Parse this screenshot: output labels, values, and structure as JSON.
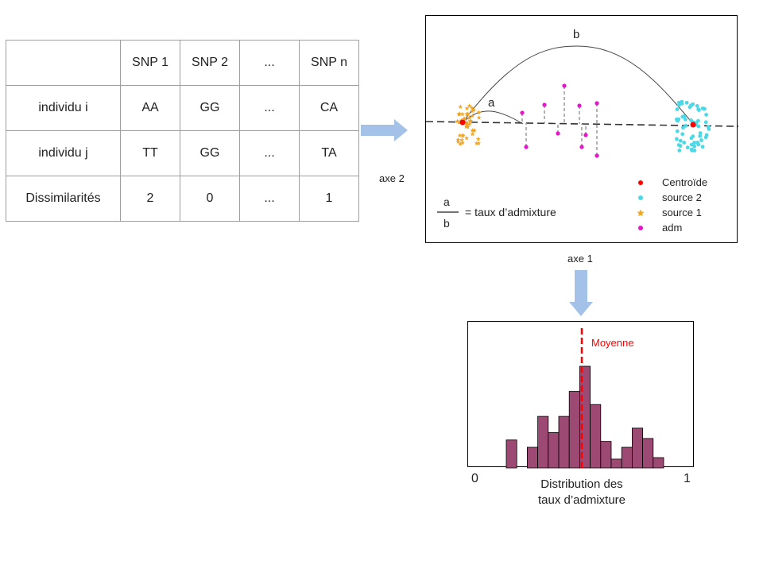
{
  "table": {
    "headers": [
      "",
      "SNP 1",
      "SNP 2",
      "...",
      "SNP n"
    ],
    "rows": [
      {
        "label": "individu i",
        "cells": [
          "AA",
          "GG",
          "...",
          "CA"
        ]
      },
      {
        "label": "individu j",
        "cells": [
          "TT",
          "GG",
          "...",
          "TA"
        ]
      },
      {
        "label": "Dissimilarités",
        "cells": [
          "2",
          "0",
          "...",
          "1"
        ]
      }
    ]
  },
  "pca": {
    "axis_x_label": "axe 1",
    "axis_y_label": "axe 2",
    "arc_a_label": "a",
    "arc_b_label": "b",
    "fraction_num": "a",
    "fraction_den": "b",
    "fraction_text": "= taux d’admixture",
    "legend": [
      {
        "label": "Centroïde",
        "color": "#ff0000",
        "marker": "dot"
      },
      {
        "label": "source 2",
        "color": "#4dd8e6",
        "marker": "dot"
      },
      {
        "label": "source 1",
        "color": "#f2a51f",
        "marker": "star"
      },
      {
        "label": "adm",
        "color": "#e515c8",
        "marker": "dot"
      }
    ]
  },
  "histogram": {
    "mean_label": "Moyenne",
    "mean_color": "#ff0000",
    "bar_color": "#9c4a73",
    "x_min_label": "0",
    "x_max_label": "1",
    "caption_line1": "Distribution des",
    "caption_line2": "taux d’admixture"
  },
  "arrow_color": "#a4c2e8"
}
